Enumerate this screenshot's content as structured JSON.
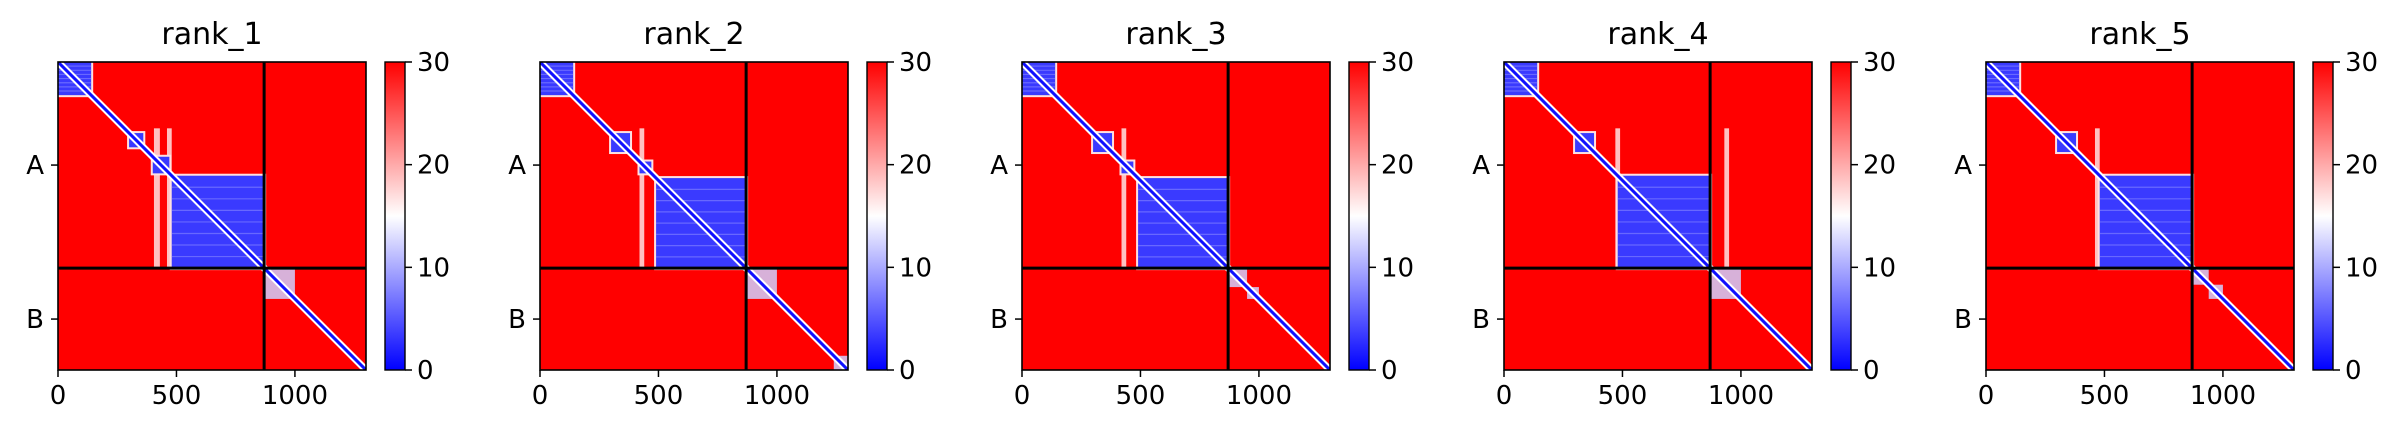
{
  "chart_data": {
    "type": "heatmap",
    "colormap": "bwr",
    "colormap_colors": [
      "#0000ff",
      "#ffffff",
      "#ff0000"
    ],
    "value_range": [
      0,
      30
    ],
    "colorbar_ticks": [
      "0",
      "10",
      "20",
      "30"
    ],
    "x_ticks": [
      "0",
      "500",
      "1000"
    ],
    "x_tick_values": [
      0,
      500,
      1000
    ],
    "xlim": [
      0,
      1300
    ],
    "chain_labels": [
      "A",
      "B"
    ],
    "chain_boundary": 870,
    "total_length": 1300,
    "panels": [
      {
        "title": "rank_1",
        "blocks": [
          [
            0,
            140
          ],
          [
            300,
            360
          ],
          [
            400,
            470
          ],
          [
            480,
            870
          ]
        ],
        "stripes": [
          [
            405,
            430
          ],
          [
            460,
            480
          ]
        ],
        "b_features": [
          [
            870,
            1000
          ]
        ]
      },
      {
        "title": "rank_2",
        "blocks": [
          [
            0,
            140
          ],
          [
            300,
            380
          ],
          [
            420,
            470
          ],
          [
            490,
            870
          ]
        ],
        "stripes": [
          [
            420,
            440
          ]
        ],
        "b_features": [
          [
            870,
            1000
          ],
          [
            1240,
            1300
          ]
        ]
      },
      {
        "title": "rank_3",
        "blocks": [
          [
            0,
            140
          ],
          [
            300,
            380
          ],
          [
            420,
            470
          ],
          [
            490,
            870
          ]
        ],
        "stripes": [
          [
            420,
            440
          ]
        ],
        "b_features": [
          [
            870,
            950
          ],
          [
            950,
            1000
          ]
        ]
      },
      {
        "title": "rank_4",
        "blocks": [
          [
            0,
            140
          ],
          [
            300,
            380
          ],
          [
            480,
            870
          ]
        ],
        "stripes": [
          [
            470,
            490
          ],
          [
            930,
            950
          ]
        ],
        "b_features": [
          [
            870,
            1000
          ]
        ]
      },
      {
        "title": "rank_5",
        "blocks": [
          [
            0,
            140
          ],
          [
            300,
            380
          ],
          [
            480,
            870
          ]
        ],
        "stripes": [
          [
            460,
            480
          ]
        ],
        "b_features": [
          [
            870,
            940
          ],
          [
            940,
            1000
          ]
        ]
      }
    ]
  }
}
